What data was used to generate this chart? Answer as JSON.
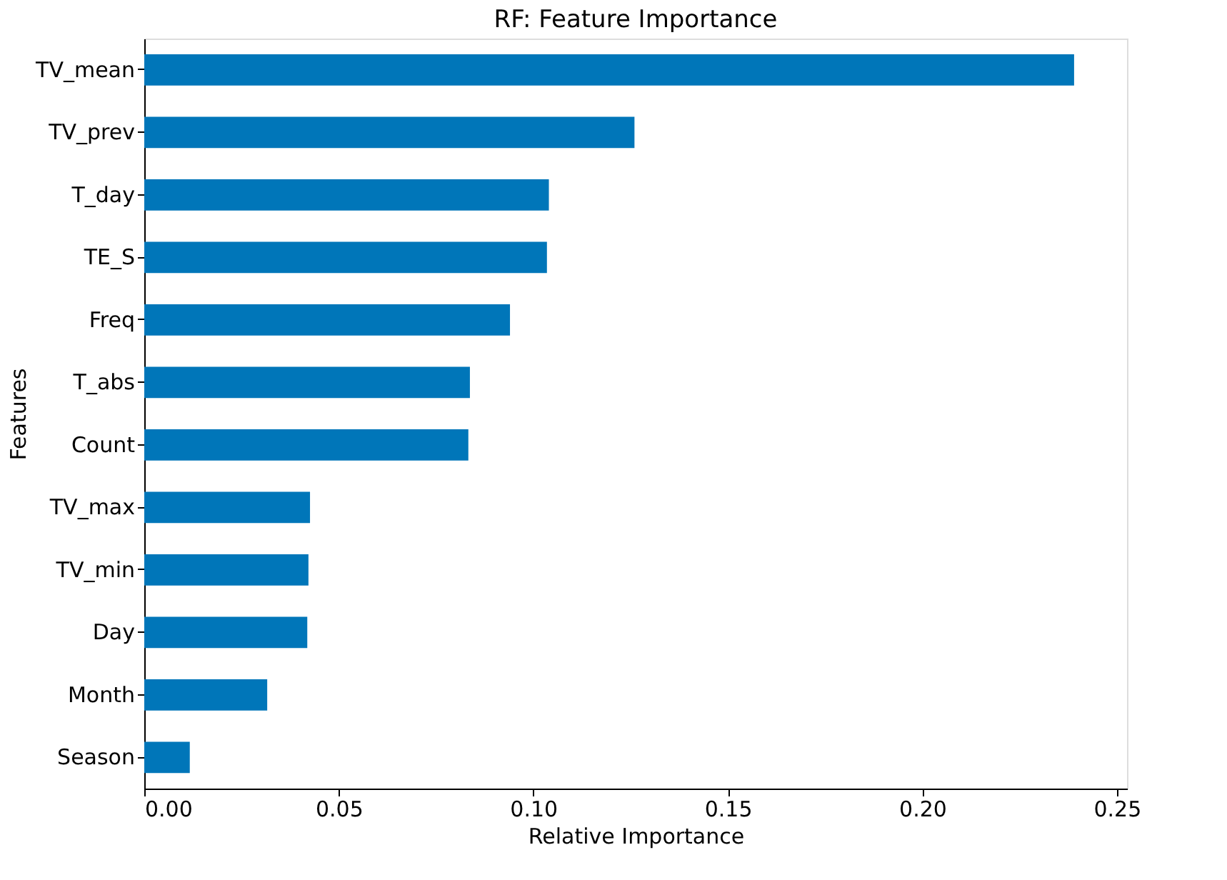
{
  "chart_data": {
    "type": "bar",
    "orientation": "horizontal",
    "title": "RF: Feature Importance",
    "xlabel": "Relative Importance",
    "ylabel": "Features",
    "categories": [
      "TV_mean",
      "TV_prev",
      "T_day",
      "TE_S",
      "Freq",
      "T_abs",
      "Count",
      "TV_max",
      "TV_min",
      "Day",
      "Month",
      "Season"
    ],
    "values": [
      0.239,
      0.126,
      0.104,
      0.1035,
      0.094,
      0.0837,
      0.0833,
      0.0426,
      0.0422,
      0.0419,
      0.0316,
      0.0117
    ],
    "color": "#0076b9",
    "xlim": [
      0,
      0.2526
    ],
    "xticks": [
      {
        "value": 0,
        "label": "0.00"
      },
      {
        "value": 0.05,
        "label": "0.05"
      },
      {
        "value": 0.1,
        "label": "0.10"
      },
      {
        "value": 0.15,
        "label": "0.15"
      },
      {
        "value": 0.2,
        "label": "0.20"
      },
      {
        "value": 0.25,
        "label": "0.25"
      }
    ],
    "grid": false
  }
}
